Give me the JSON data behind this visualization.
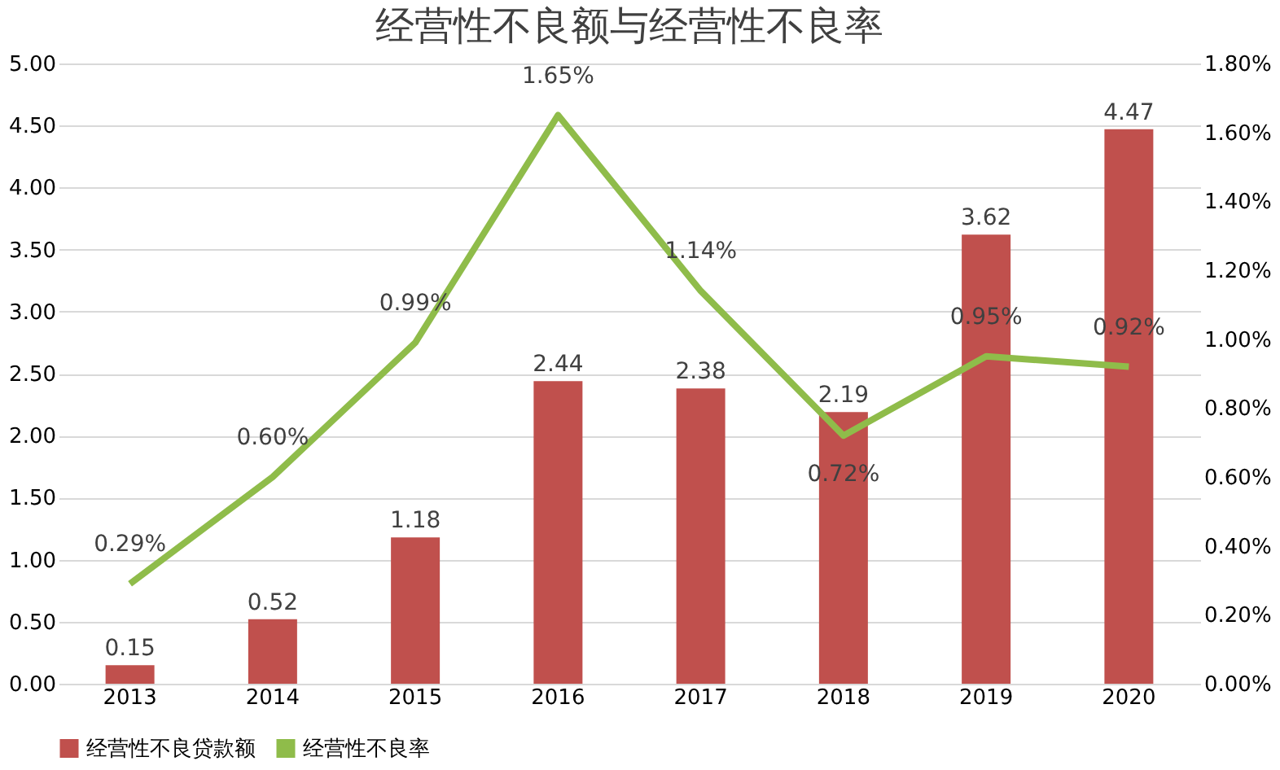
{
  "chart_data": {
    "type": "bar",
    "title": "经营性不良额与经营性不良率",
    "categories": [
      "2013",
      "2014",
      "2015",
      "2016",
      "2017",
      "2018",
      "2019",
      "2020"
    ],
    "series": [
      {
        "name": "经营性不良贷款额",
        "color": "#c0504d",
        "values": [
          0.15,
          0.52,
          1.18,
          2.44,
          2.38,
          2.19,
          3.62,
          4.47
        ],
        "value_labels": [
          "0.15",
          "0.52",
          "1.18",
          "2.44",
          "2.38",
          "2.19",
          "3.62",
          "4.47"
        ]
      },
      {
        "name": "经营性不良率",
        "type": "line",
        "axis": "y2",
        "color": "#8fbc4a",
        "values": [
          0.29,
          0.6,
          0.99,
          1.65,
          1.14,
          0.72,
          0.95,
          0.92
        ],
        "value_labels": [
          "0.29%",
          "0.60%",
          "0.99%",
          "1.65%",
          "1.14%",
          "0.72%",
          "0.95%",
          "0.92%"
        ]
      }
    ],
    "ylim": [
      0,
      5
    ],
    "yticks": [
      {
        "value": 0,
        "label": "0.00"
      },
      {
        "value": 0.5,
        "label": "0.50"
      },
      {
        "value": 1,
        "label": "1.00"
      },
      {
        "value": 1.5,
        "label": "1.50"
      },
      {
        "value": 2,
        "label": "2.00"
      },
      {
        "value": 2.5,
        "label": "2.50"
      },
      {
        "value": 3,
        "label": "3.00"
      },
      {
        "value": 3.5,
        "label": "3.50"
      },
      {
        "value": 4,
        "label": "4.00"
      },
      {
        "value": 4.5,
        "label": "4.50"
      },
      {
        "value": 5,
        "label": "5.00"
      }
    ],
    "y2lim": [
      0,
      1.8
    ],
    "y2ticks": [
      {
        "value": 0,
        "label": "0.00%"
      },
      {
        "value": 0.2,
        "label": "0.20%"
      },
      {
        "value": 0.4,
        "label": "0.40%"
      },
      {
        "value": 0.6,
        "label": "0.60%"
      },
      {
        "value": 0.8,
        "label": "0.80%"
      },
      {
        "value": 1.0,
        "label": "1.00%"
      },
      {
        "value": 1.2,
        "label": "1.20%"
      },
      {
        "value": 1.4,
        "label": "1.40%"
      },
      {
        "value": 1.6,
        "label": "1.60%"
      },
      {
        "value": 1.8,
        "label": "1.80%"
      }
    ],
    "grid": "y",
    "legend": "bottom",
    "marker": "none",
    "line_style": "solid"
  }
}
